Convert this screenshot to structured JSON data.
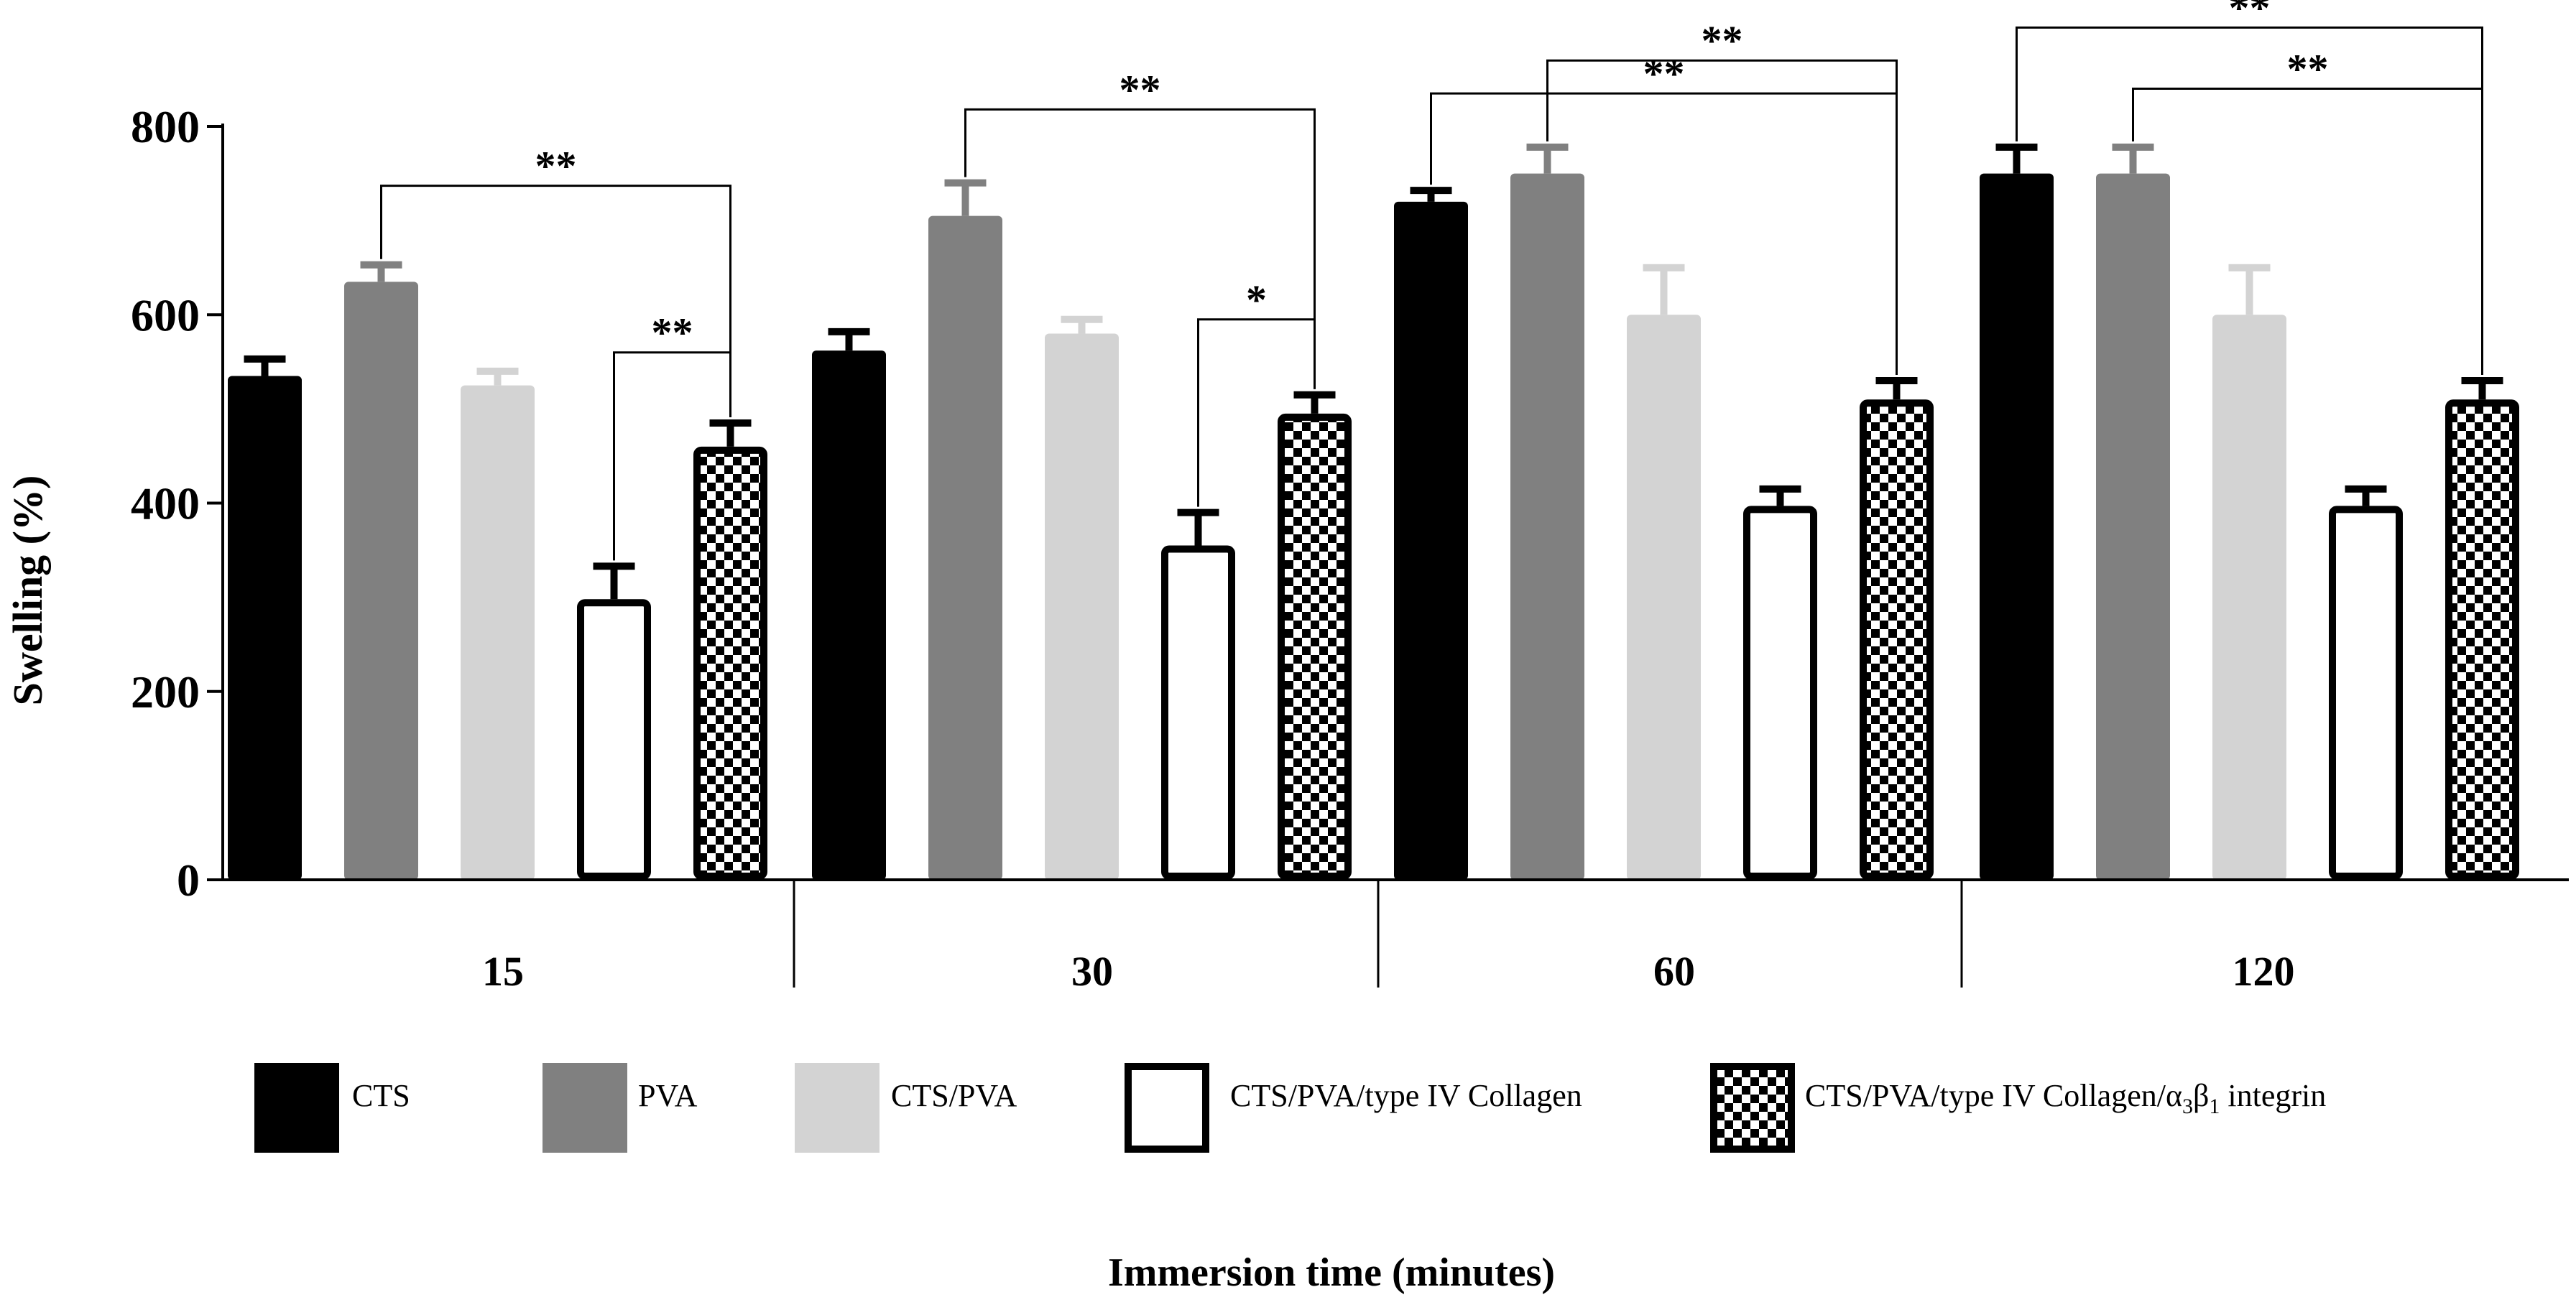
{
  "chart_data": {
    "type": "bar",
    "ylabel": "Swelling (%)",
    "xlabel": "Immersion time (minutes)",
    "ylim": [
      0,
      800
    ],
    "yticks": [
      "0",
      "200",
      "400",
      "600",
      "800"
    ],
    "categories": [
      "15",
      "30",
      "60",
      "120"
    ],
    "series": [
      {
        "name": "CTS",
        "color": "#000000",
        "pattern": "solid",
        "values": [
          535,
          562,
          720,
          750
        ],
        "errors": [
          18,
          20,
          12,
          28
        ]
      },
      {
        "name": "PVA",
        "color": "#808080",
        "pattern": "solid",
        "values": [
          635,
          705,
          750,
          750
        ],
        "errors": [
          18,
          35,
          28,
          28
        ]
      },
      {
        "name": "CTS/PVA",
        "color": "#d3d3d3",
        "pattern": "solid",
        "values": [
          525,
          580,
          600,
          600
        ],
        "errors": [
          15,
          15,
          50,
          50
        ]
      },
      {
        "name": "CTS/PVA/type IV Collagen",
        "color": "#ffffff",
        "pattern": "outline",
        "values": [
          298,
          355,
          397,
          397
        ],
        "errors": [
          35,
          35,
          18,
          18
        ]
      },
      {
        "name": "CTS/PVA/type IV Collagen/α₃β₁ integrin",
        "legend_parts": [
          "CTS/PVA/type IV Collagen/α",
          "3",
          "β",
          "1",
          " integrin"
        ],
        "color": "#000000",
        "pattern": "checker",
        "values": [
          460,
          495,
          510,
          510
        ],
        "errors": [
          25,
          20,
          20,
          20
        ]
      }
    ],
    "significance": [
      {
        "group": "15",
        "from_series": 1,
        "to_series": 4,
        "level": 737,
        "label": "**"
      },
      {
        "group": "15",
        "from_series": 3,
        "to_series": 4,
        "level": 560,
        "label": "**"
      },
      {
        "group": "30",
        "from_series": 1,
        "to_series": 4,
        "level": 818,
        "label": "**"
      },
      {
        "group": "30",
        "from_series": 3,
        "to_series": 4,
        "level": 595,
        "label": "*"
      },
      {
        "group": "60",
        "from_series": 0,
        "to_series": 4,
        "level": 835,
        "label": "**"
      },
      {
        "group": "60",
        "from_series": 1,
        "to_series": 4,
        "level": 870,
        "label": "**"
      },
      {
        "group": "120",
        "from_series": 0,
        "to_series": 4,
        "level": 905,
        "label": "**"
      },
      {
        "group": "120",
        "from_series": 1,
        "to_series": 4,
        "level": 840,
        "label": "**"
      }
    ]
  }
}
